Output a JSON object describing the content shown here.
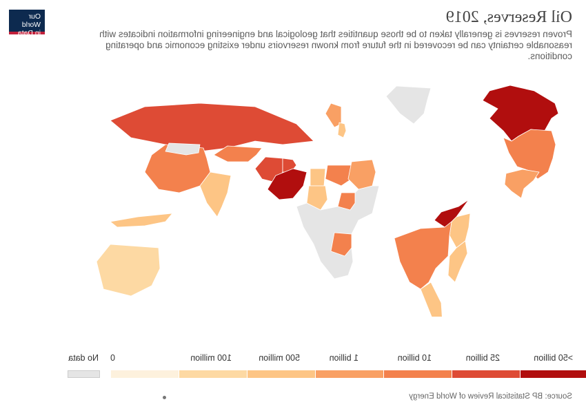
{
  "title": "Oil Reserves, 2019",
  "subtitle": "Proven reserves is generally taken to be those quantities that geological and engineering information indicates with reasonable certainty can be recovered in the future from known reservoirs under existing economic and operating conditions.",
  "logo": {
    "line1": "Our World",
    "line2": "in Data",
    "bg_color": "#0d2a4f",
    "accent_color": "#c1203b"
  },
  "legend": {
    "nodata_label": "No data",
    "nodata_color": "#e5e5e5",
    "bins": [
      {
        "label": "0",
        "color": "#fdf1dd"
      },
      {
        "label": "100 million",
        "color": "#fdd9a3"
      },
      {
        "label": "500 million",
        "color": "#fdc585"
      },
      {
        "label": "1 billion",
        "color": "#f9a064"
      },
      {
        "label": "10 billion",
        "color": "#f3814d"
      },
      {
        "label": "25 billion",
        "color": "#de4b35"
      },
      {
        "label": ">50 billion",
        "color": "#b10e0e"
      }
    ]
  },
  "regions": [
    {
      "name": "Canada",
      "color": "#b10e0e"
    },
    {
      "name": "Greenland",
      "color": "#e5e5e5"
    },
    {
      "name": "United States",
      "color": "#f3814d"
    },
    {
      "name": "Mexico",
      "color": "#f9a064"
    },
    {
      "name": "Venezuela",
      "color": "#b10e0e"
    },
    {
      "name": "Colombia",
      "color": "#fdc585"
    },
    {
      "name": "Brazil",
      "color": "#f3814d"
    },
    {
      "name": "Argentina",
      "color": "#fdc585"
    },
    {
      "name": "Peru",
      "color": "#fdc585"
    },
    {
      "name": "Russia",
      "color": "#de4b35"
    },
    {
      "name": "Kazakhstan",
      "color": "#f3814d"
    },
    {
      "name": "China",
      "color": "#f3814d"
    },
    {
      "name": "Mongolia",
      "color": "#e5e5e5"
    },
    {
      "name": "India",
      "color": "#fdc585"
    },
    {
      "name": "Iran",
      "color": "#de4b35"
    },
    {
      "name": "Iraq",
      "color": "#de4b35"
    },
    {
      "name": "Saudi Arabia",
      "color": "#b10e0e"
    },
    {
      "name": "Libya",
      "color": "#f3814d"
    },
    {
      "name": "Algeria",
      "color": "#f9a064"
    },
    {
      "name": "Egypt",
      "color": "#fdc585"
    },
    {
      "name": "Sudan",
      "color": "#fdc585"
    },
    {
      "name": "Nigeria",
      "color": "#f3814d"
    },
    {
      "name": "Angola",
      "color": "#f3814d"
    },
    {
      "name": "Australia",
      "color": "#fdd9a3"
    },
    {
      "name": "Indonesia",
      "color": "#fdc585"
    },
    {
      "name": "Norway",
      "color": "#f9a064"
    },
    {
      "name": "United Kingdom",
      "color": "#fdc585"
    },
    {
      "name": "Africa (rest)",
      "color": "#e5e5e5"
    }
  ],
  "source": "Source: BP Statistical Review of World Energy"
}
